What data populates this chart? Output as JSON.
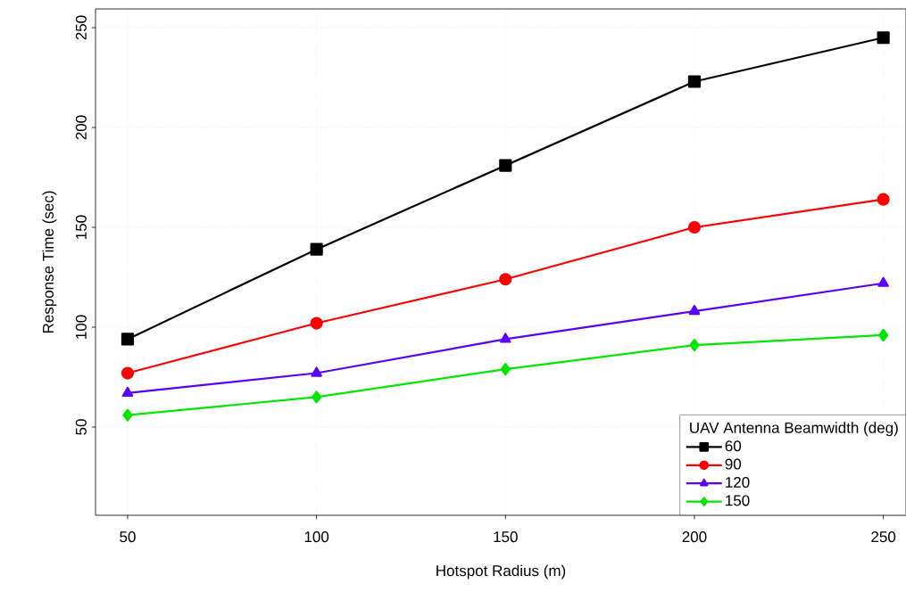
{
  "chart_data": {
    "type": "line",
    "xlabel": "Hotspot Radius (m)",
    "ylabel": "Response Time (sec)",
    "legend_title": "UAV Antenna Beamwidth (deg)",
    "x": [
      50,
      100,
      150,
      200,
      250
    ],
    "series": [
      {
        "name": "60",
        "color": "#000000",
        "marker": "square",
        "values": [
          94,
          139,
          181,
          223,
          245
        ]
      },
      {
        "name": "90",
        "color": "#ff0000",
        "marker": "circle",
        "values": [
          77,
          102,
          124,
          150,
          164
        ]
      },
      {
        "name": "120",
        "color": "#5a00ff",
        "marker": "triangle",
        "values": [
          67,
          77,
          94,
          108,
          122
        ]
      },
      {
        "name": "150",
        "color": "#00e600",
        "marker": "diamond",
        "values": [
          56,
          65,
          79,
          91,
          96
        ]
      }
    ],
    "xlim": [
      41.5,
      256
    ],
    "ylim": [
      5.8,
      259.4
    ],
    "xticks": [
      50,
      100,
      150,
      200,
      250
    ],
    "yticks": [
      50,
      100,
      150,
      200,
      250
    ],
    "grid": true,
    "legend": "bottom right",
    "line_style": "solid"
  }
}
